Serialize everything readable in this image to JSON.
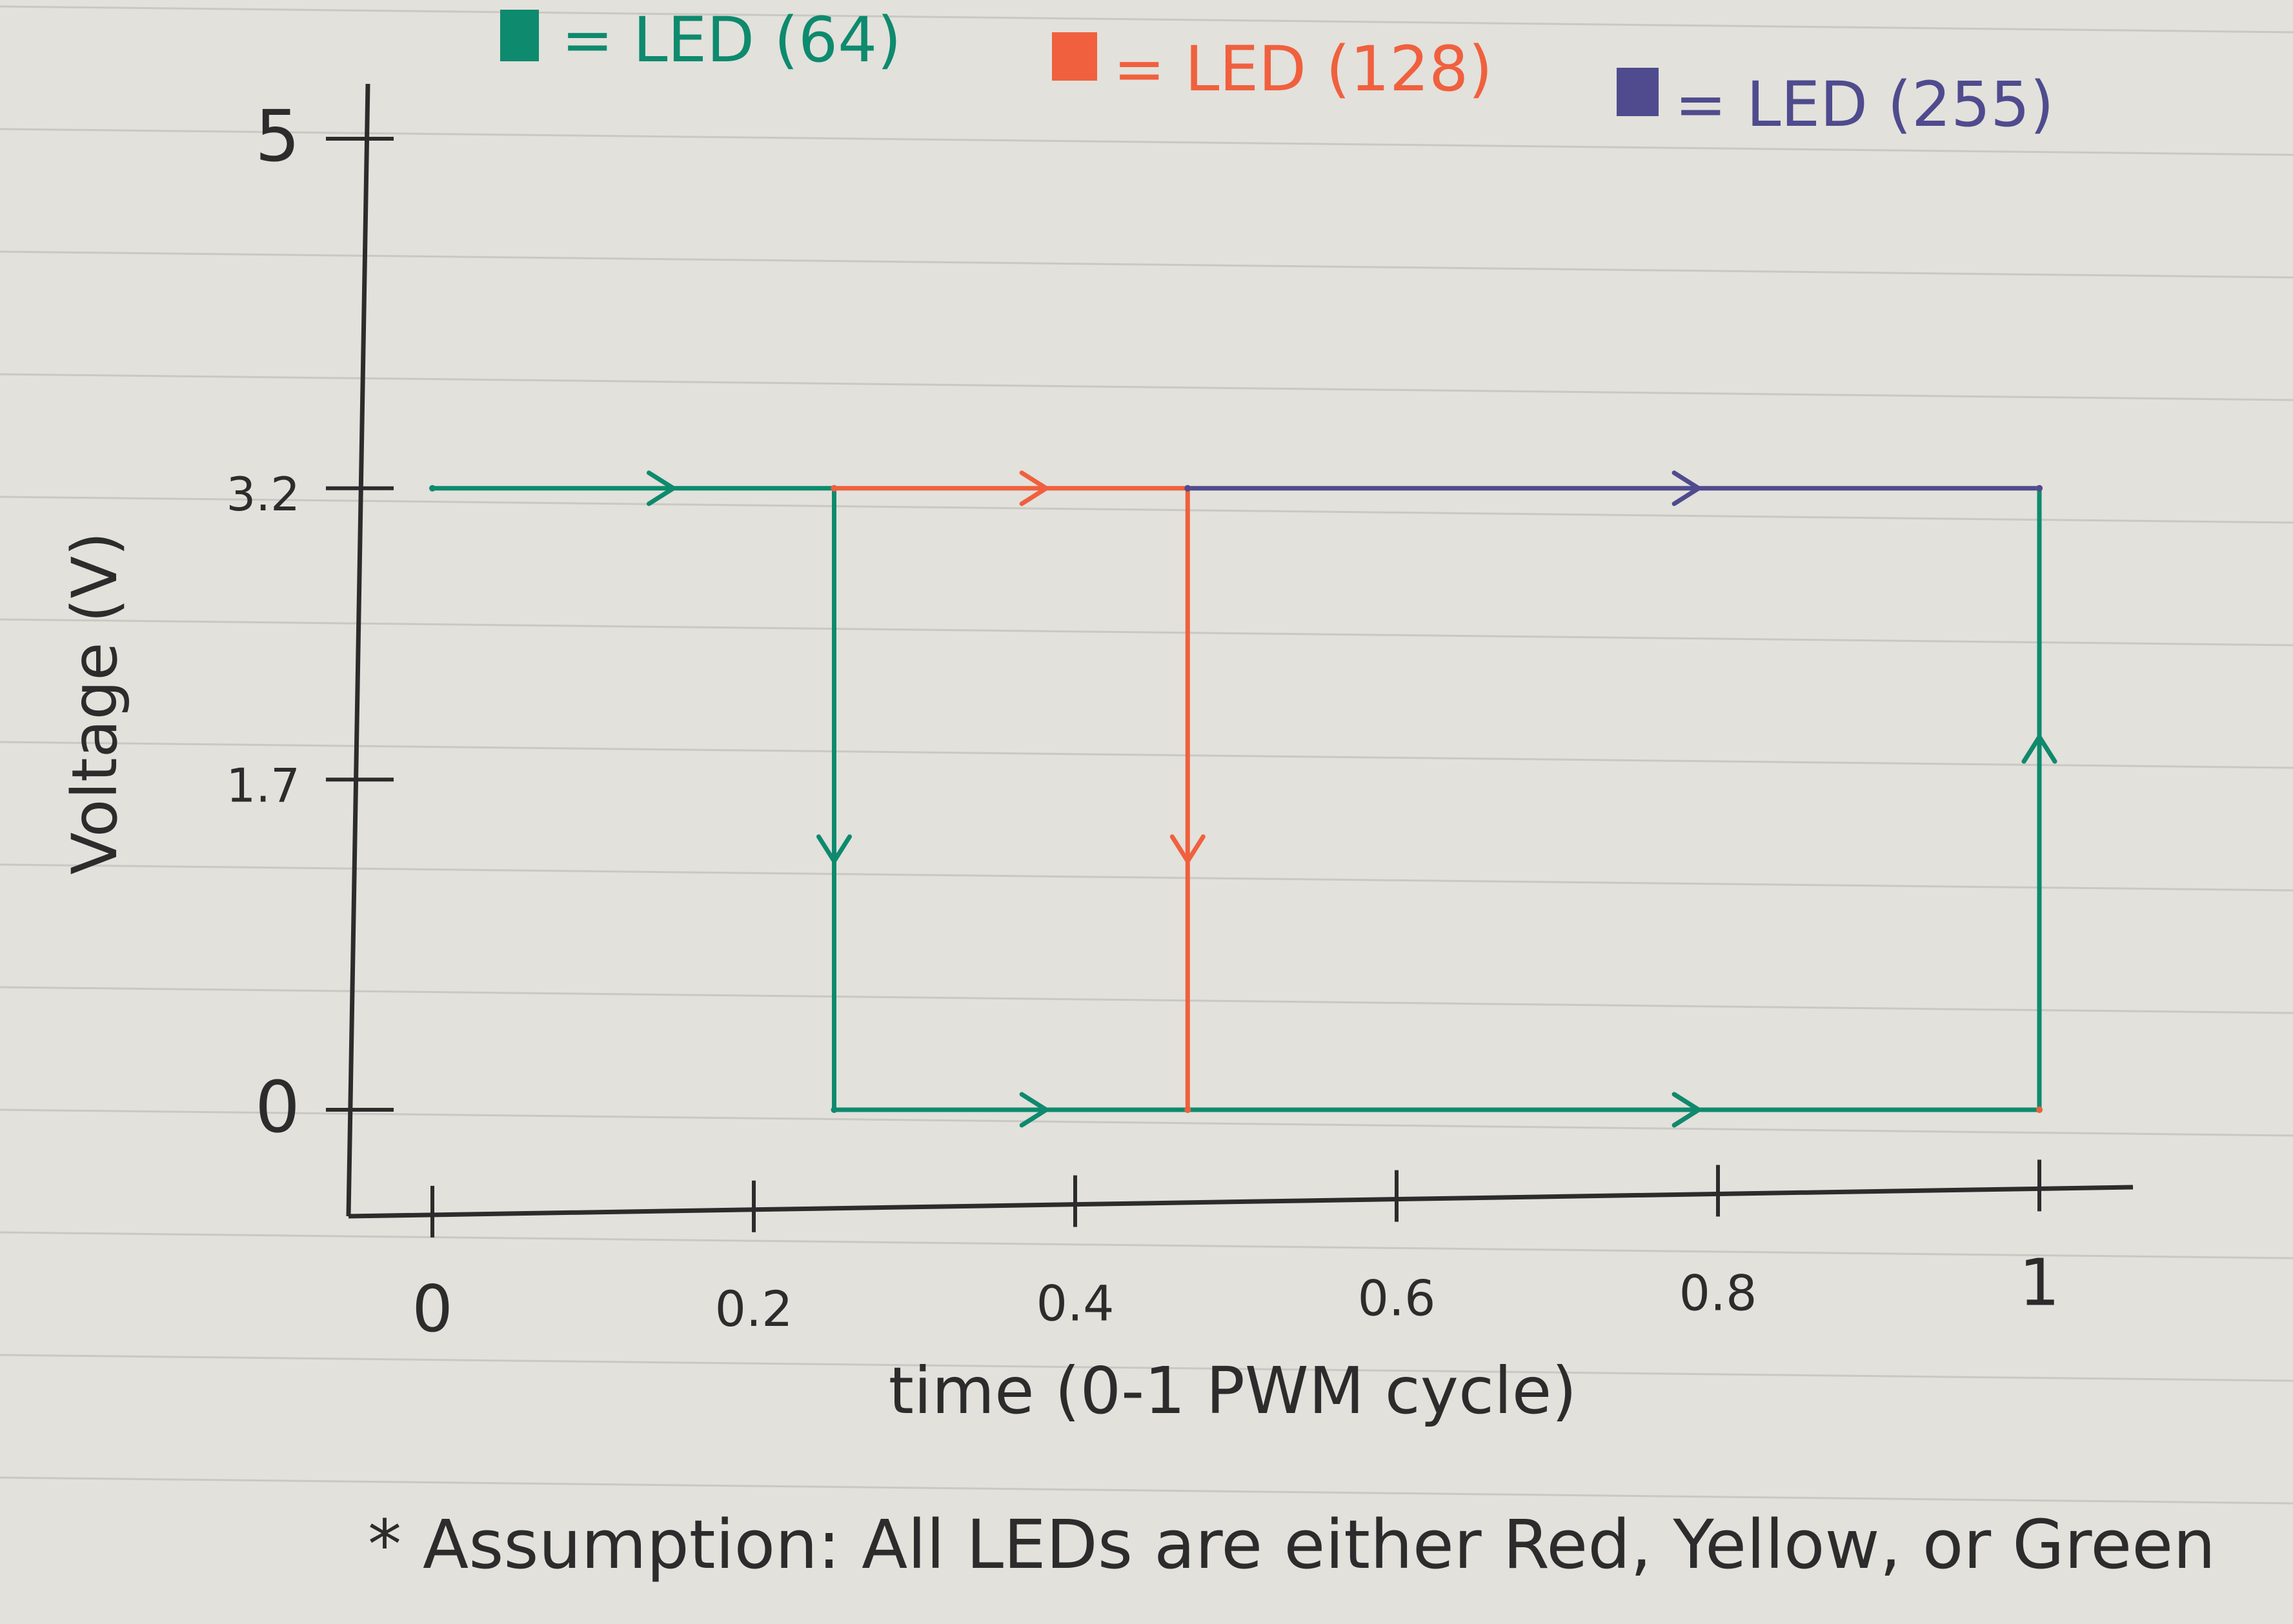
{
  "chart_data": {
    "type": "line",
    "legend": [
      {
        "label": "= LED (64)",
        "color": "#0e8a6e"
      },
      {
        "label": "= LED (128)",
        "color": "#f0603e"
      },
      {
        "label": "= LED (255)",
        "color": "#4f4b8e"
      }
    ],
    "legend_placement": "top",
    "xlabel": "time (0-1 PWM cycle)",
    "ylabel": "Voltage (V)",
    "xlim": [
      0,
      1
    ],
    "ylim": [
      0,
      5
    ],
    "x_ticks": [
      {
        "value": 0,
        "label": "0"
      },
      {
        "value": 0.2,
        "label": "0.2"
      },
      {
        "value": 0.4,
        "label": "0.4"
      },
      {
        "value": 0.6,
        "label": "0.6"
      },
      {
        "value": 0.8,
        "label": "0.8"
      },
      {
        "value": 1,
        "label": "1"
      }
    ],
    "y_ticks": [
      {
        "value": 0,
        "label": "0"
      },
      {
        "value": 1.7,
        "label": "1.7"
      },
      {
        "value": 3.2,
        "label": "3.2"
      },
      {
        "value": 5,
        "label": "5"
      }
    ],
    "grid": false,
    "series": [
      {
        "name": "LED (64)",
        "color": "#0e8a6e",
        "x": [
          0,
          0.25,
          0.25,
          0.47,
          1,
          1
        ],
        "y": [
          3.2,
          3.2,
          0,
          0,
          0,
          3.2
        ]
      },
      {
        "name": "LED (128)",
        "color": "#f0603e",
        "x": [
          0.25,
          0.47,
          0.47,
          1,
          1
        ],
        "y": [
          3.2,
          3.2,
          0,
          0,
          3.2
        ]
      },
      {
        "name": "LED (255)",
        "color": "#4f4b8e",
        "x": [
          0.47,
          1
        ],
        "y": [
          3.2,
          3.2
        ]
      }
    ]
  },
  "note": "* Assumption: All LEDs are either Red, Yellow, or Green"
}
